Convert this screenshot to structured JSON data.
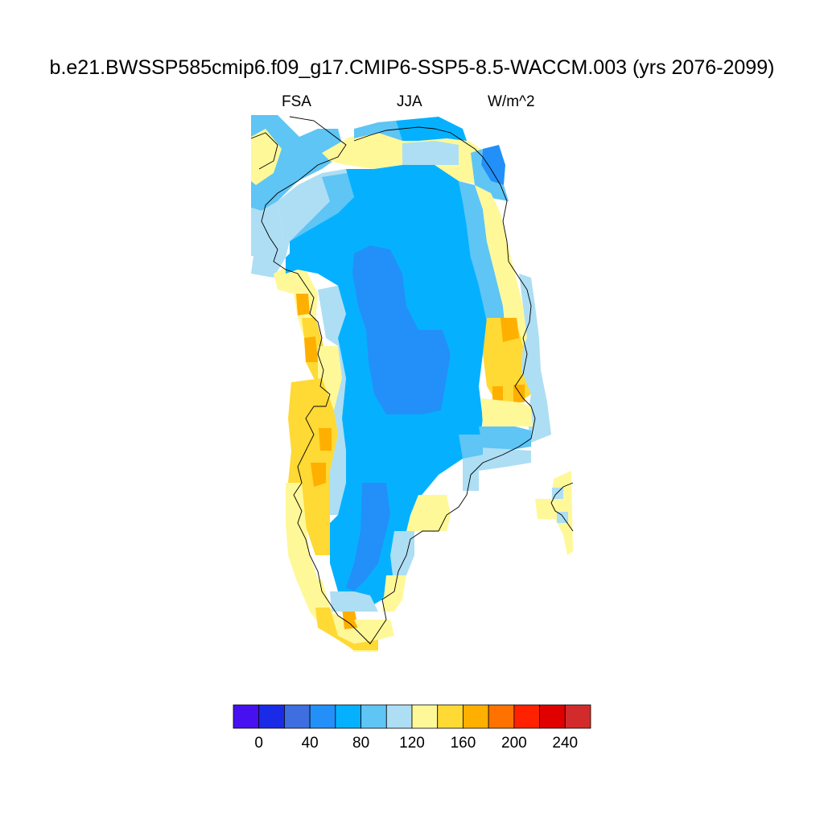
{
  "title": "b.e21.BWSSP585cmip6.f09_g17.CMIP6-SSP5-8.5-WACCM.003 (yrs 2076-2099)",
  "subtitle_left": "FSA",
  "subtitle_center": "JJA",
  "subtitle_right": "W/m^2",
  "colorbar": {
    "colors": [
      "#4710f0",
      "#1a2be8",
      "#3e6ee0",
      "#2290f8",
      "#05b1ff",
      "#5ec5f5",
      "#addef4",
      "#fff899",
      "#ffd934",
      "#ffaf00",
      "#ff7200",
      "#ff2100",
      "#e00000",
      "#d32b2b"
    ],
    "tick_labels": [
      "0",
      "40",
      "80",
      "120",
      "160",
      "200",
      "240"
    ]
  }
}
